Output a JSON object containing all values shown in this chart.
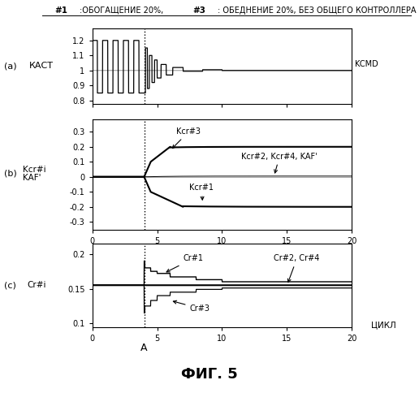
{
  "title_text": "#1 :",
  "title_text2": "ОБОГАЩЕНИЕ 20%,",
  "title_text3": "#3 :",
  "title_text4": "ОБЕДНЕНИЕ 20%, БЕЗ ОБЩЕГО КОНТРОЛЛЕРА",
  "fig_size": [
    5.16,
    5.0
  ],
  "dpi": 100,
  "vline_x": 4.0,
  "panel_a_ylim": [
    0.78,
    1.28
  ],
  "panel_a_yticks": [
    0.8,
    0.9,
    1.0,
    1.1,
    1.2
  ],
  "panel_a_ytick_labels": [
    "0.8",
    "0.9",
    "1",
    "1.1",
    "1.2"
  ],
  "panel_b_ylim": [
    -0.35,
    0.38
  ],
  "panel_b_yticks": [
    -0.3,
    -0.2,
    -0.1,
    0.0,
    0.1,
    0.2,
    0.3
  ],
  "panel_b_ytick_labels": [
    "-0.3",
    "-0.2",
    "-0.1",
    "0",
    "0.1",
    "0.2",
    "0.3"
  ],
  "panel_c_ylim": [
    0.095,
    0.215
  ],
  "panel_c_yticks": [
    0.1,
    0.15,
    0.2
  ],
  "panel_c_ytick_labels": [
    "0.1",
    "0.15",
    "0.2"
  ],
  "xlim": [
    0,
    20
  ],
  "xticks": [
    0,
    5,
    10,
    15,
    20
  ],
  "xtick_labels": [
    "0",
    "5",
    "10",
    "15",
    "20"
  ]
}
